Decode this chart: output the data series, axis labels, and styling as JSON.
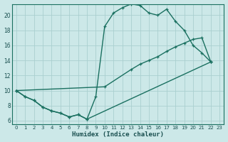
{
  "xlabel": "Humidex (Indice chaleur)",
  "bg_color": "#cce8e8",
  "grid_color": "#aacfcf",
  "line_color": "#1a7060",
  "xlim": [
    -0.5,
    23.5
  ],
  "ylim": [
    5.5,
    21.5
  ],
  "yticks": [
    6,
    8,
    10,
    12,
    14,
    16,
    18,
    20
  ],
  "line1_x": [
    0,
    1,
    2,
    3,
    4,
    5,
    6,
    7,
    8,
    9,
    10,
    11,
    12,
    13,
    14,
    15,
    16,
    17,
    18,
    19,
    20,
    21,
    22
  ],
  "line1_y": [
    10.0,
    9.2,
    8.7,
    7.8,
    7.3,
    7.0,
    6.5,
    6.8,
    6.2,
    9.2,
    18.5,
    20.3,
    21.0,
    21.5,
    21.3,
    20.3,
    20.0,
    20.8,
    19.2,
    18.0,
    16.0,
    15.0,
    13.8
  ],
  "line2_x": [
    0,
    1,
    2,
    3,
    4,
    5,
    6,
    7,
    8,
    22
  ],
  "line2_y": [
    10.0,
    9.2,
    8.7,
    7.8,
    7.3,
    7.0,
    6.5,
    6.8,
    6.2,
    13.8
  ],
  "line3_x": [
    0,
    10,
    13,
    14,
    15,
    16,
    17,
    18,
    19,
    20,
    21,
    22
  ],
  "line3_y": [
    10.0,
    10.5,
    12.8,
    13.5,
    14.0,
    14.5,
    15.2,
    15.8,
    16.3,
    16.8,
    17.0,
    13.8
  ],
  "marker": "+",
  "markersize": 3.5,
  "linewidth": 1.0
}
